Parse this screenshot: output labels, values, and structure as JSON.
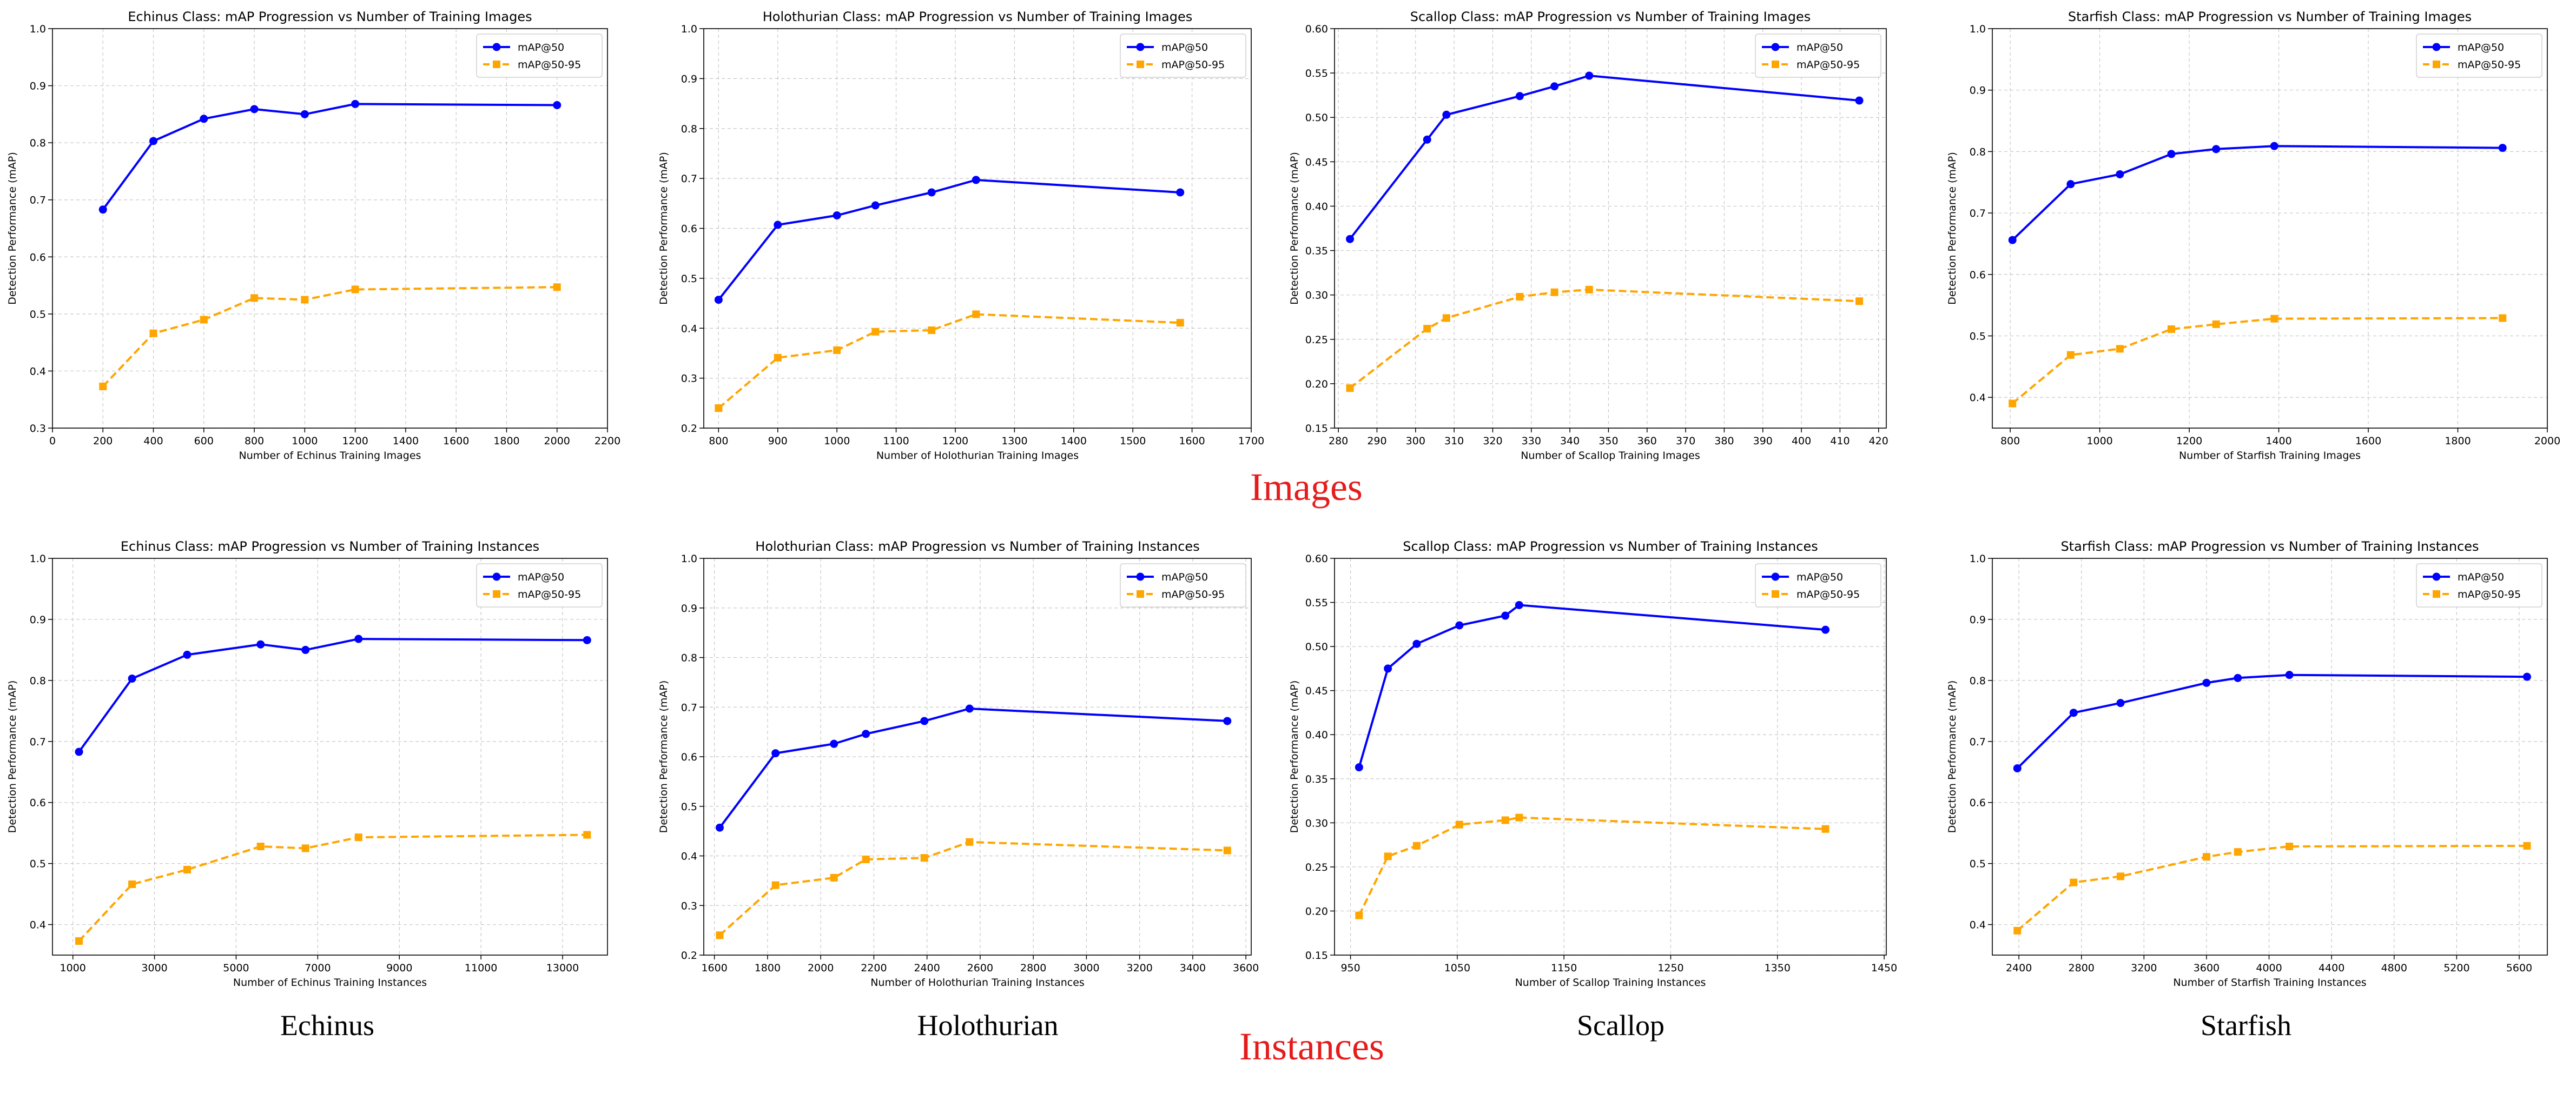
{
  "section_labels": {
    "images": "Images",
    "instances": "Instances"
  },
  "class_labels": [
    "Echinus",
    "Holothurian",
    "Scallop",
    "Starfish"
  ],
  "ylabel": "Detection Performance (mAP)",
  "legend": [
    "mAP@50",
    "mAP@50-95"
  ],
  "colors": {
    "map50": "#0000ff",
    "map5095": "#ffa500",
    "section": "#e51c1c"
  },
  "chart_data": [
    {
      "type": "line",
      "title": "Echinus Class: mAP Progression vs Number of Training Images",
      "xlabel": "Number of Echinus Training Images",
      "ylabel": "Detection Performance (mAP)",
      "xlim": [
        0,
        2200
      ],
      "ylim": [
        0.3,
        1.0
      ],
      "xticks": [
        0,
        200,
        400,
        600,
        800,
        1000,
        1200,
        1400,
        1600,
        1800,
        2000,
        2200
      ],
      "xtick_labels": [
        "0",
        "200",
        "400",
        "600",
        "800",
        "1000",
        "1200",
        "1400",
        "1600",
        "1800",
        "2000",
        "2200"
      ],
      "yticks": [
        0.3,
        0.4,
        0.5,
        0.6,
        0.7,
        0.8,
        0.9,
        1.0
      ],
      "ytick_labels": [
        "0.3",
        "0.4",
        "0.5",
        "0.6",
        "0.7",
        "0.8",
        "0.9",
        "1.0"
      ],
      "x": [
        200,
        400,
        600,
        800,
        1000,
        1200,
        2000
      ],
      "series": [
        {
          "name": "mAP@50",
          "values": [
            0.683,
            0.803,
            0.842,
            0.859,
            0.85,
            0.868,
            0.866
          ]
        },
        {
          "name": "mAP@50-95",
          "values": [
            0.373,
            0.466,
            0.49,
            0.528,
            0.525,
            0.543,
            0.547
          ]
        }
      ]
    },
    {
      "type": "line",
      "title": "Holothurian Class: mAP Progression vs Number of Training Images",
      "xlabel": "Number of Holothurian Training Images",
      "ylabel": "Detection Performance (mAP)",
      "xlim": [
        775,
        1700
      ],
      "ylim": [
        0.2,
        1.0
      ],
      "xticks": [
        800,
        900,
        1000,
        1100,
        1200,
        1300,
        1400,
        1500,
        1600,
        1700
      ],
      "xtick_labels": [
        "800",
        "900",
        "1000",
        "1100",
        "1200",
        "1300",
        "1400",
        "1500",
        "1600",
        "1700"
      ],
      "yticks": [
        0.2,
        0.3,
        0.4,
        0.5,
        0.6,
        0.7,
        0.8,
        0.9,
        1.0
      ],
      "ytick_labels": [
        "0.2",
        "0.3",
        "0.4",
        "0.5",
        "0.6",
        "0.7",
        "0.8",
        "0.9",
        "1.0"
      ],
      "x": [
        800,
        900,
        1000,
        1065,
        1160,
        1235,
        1580
      ],
      "series": [
        {
          "name": "mAP@50",
          "values": [
            0.457,
            0.607,
            0.626,
            0.646,
            0.672,
            0.697,
            0.672
          ]
        },
        {
          "name": "mAP@50-95",
          "values": [
            0.24,
            0.341,
            0.356,
            0.393,
            0.396,
            0.428,
            0.411
          ]
        }
      ]
    },
    {
      "type": "line",
      "title": "Scallop Class: mAP Progression vs Number of Training Images",
      "xlabel": "Number of Scallop Training Images",
      "ylabel": "Detection Performance (mAP)",
      "xlim": [
        279,
        422
      ],
      "ylim": [
        0.15,
        0.6
      ],
      "xticks": [
        280,
        290,
        300,
        310,
        320,
        330,
        340,
        350,
        360,
        370,
        380,
        390,
        400,
        410,
        420
      ],
      "xtick_labels": [
        "280",
        "290",
        "300",
        "310",
        "320",
        "330",
        "340",
        "350",
        "360",
        "370",
        "380",
        "390",
        "400",
        "410",
        "420"
      ],
      "yticks": [
        0.15,
        0.2,
        0.25,
        0.3,
        0.35,
        0.4,
        0.45,
        0.5,
        0.55,
        0.6
      ],
      "ytick_labels": [
        "0.15",
        "0.20",
        "0.25",
        "0.30",
        "0.35",
        "0.40",
        "0.45",
        "0.50",
        "0.55",
        "0.60"
      ],
      "x": [
        283,
        303,
        308,
        327,
        336,
        345,
        415
      ],
      "series": [
        {
          "name": "mAP@50",
          "values": [
            0.363,
            0.475,
            0.503,
            0.524,
            0.535,
            0.547,
            0.519
          ]
        },
        {
          "name": "mAP@50-95",
          "values": [
            0.195,
            0.262,
            0.274,
            0.298,
            0.303,
            0.306,
            0.293
          ]
        }
      ]
    },
    {
      "type": "line",
      "title": "Starfish Class: mAP Progression vs Number of Training Images",
      "xlabel": "Number of Starfish Training Images",
      "ylabel": "Detection Performance (mAP)",
      "xlim": [
        760,
        2000
      ],
      "ylim": [
        0.35,
        1.0
      ],
      "xticks": [
        800,
        1000,
        1200,
        1400,
        1600,
        1800,
        2000
      ],
      "xtick_labels": [
        "800",
        "1000",
        "1200",
        "1400",
        "1600",
        "1800",
        "2000"
      ],
      "yticks": [
        0.4,
        0.5,
        0.6,
        0.7,
        0.8,
        0.9,
        1.0
      ],
      "ytick_labels": [
        "0.4",
        "0.5",
        "0.6",
        "0.7",
        "0.8",
        "0.9",
        "1.0"
      ],
      "x": [
        805,
        935,
        1045,
        1160,
        1260,
        1390,
        1900
      ],
      "series": [
        {
          "name": "mAP@50",
          "values": [
            0.656,
            0.747,
            0.763,
            0.796,
            0.804,
            0.809,
            0.806
          ]
        },
        {
          "name": "mAP@50-95",
          "values": [
            0.39,
            0.469,
            0.479,
            0.511,
            0.519,
            0.528,
            0.529
          ]
        }
      ]
    },
    {
      "type": "line",
      "title": "Echinus Class: mAP Progression vs Number of Training Instances",
      "xlabel": "Number of Echinus Training Instances",
      "ylabel": "Detection Performance (mAP)",
      "xlim": [
        500,
        14100
      ],
      "ylim": [
        0.35,
        1.0
      ],
      "xticks": [
        1000,
        3000,
        5000,
        7000,
        9000,
        11000,
        13000
      ],
      "xtick_labels": [
        "1000",
        "3000",
        "5000",
        "7000",
        "9000",
        "11000",
        "13000"
      ],
      "yticks": [
        0.4,
        0.5,
        0.6,
        0.7,
        0.8,
        0.9,
        1.0
      ],
      "ytick_labels": [
        "0.4",
        "0.5",
        "0.6",
        "0.7",
        "0.8",
        "0.9",
        "1.0"
      ],
      "x": [
        1150,
        2450,
        3800,
        5600,
        6700,
        8000,
        13600
      ],
      "series": [
        {
          "name": "mAP@50",
          "values": [
            0.683,
            0.803,
            0.842,
            0.859,
            0.85,
            0.868,
            0.866
          ]
        },
        {
          "name": "mAP@50-95",
          "values": [
            0.373,
            0.466,
            0.49,
            0.528,
            0.525,
            0.543,
            0.547
          ]
        }
      ]
    },
    {
      "type": "line",
      "title": "Holothurian Class: mAP Progression vs Number of Training Instances",
      "xlabel": "Number of Holothurian Training Instances",
      "ylabel": "Detection Performance (mAP)",
      "xlim": [
        1560,
        3620
      ],
      "ylim": [
        0.2,
        1.0
      ],
      "xticks": [
        1600,
        1800,
        2000,
        2200,
        2400,
        2600,
        2800,
        3000,
        3200,
        3400,
        3600
      ],
      "xtick_labels": [
        "1600",
        "1800",
        "2000",
        "2200",
        "2400",
        "2600",
        "2800",
        "3000",
        "3200",
        "3400",
        "3600"
      ],
      "yticks": [
        0.2,
        0.3,
        0.4,
        0.5,
        0.6,
        0.7,
        0.8,
        0.9,
        1.0
      ],
      "ytick_labels": [
        "0.2",
        "0.3",
        "0.4",
        "0.5",
        "0.6",
        "0.7",
        "0.8",
        "0.9",
        "1.0"
      ],
      "x": [
        1620,
        1830,
        2050,
        2170,
        2390,
        2560,
        3530
      ],
      "series": [
        {
          "name": "mAP@50",
          "values": [
            0.457,
            0.607,
            0.626,
            0.646,
            0.672,
            0.697,
            0.672
          ]
        },
        {
          "name": "mAP@50-95",
          "values": [
            0.24,
            0.341,
            0.356,
            0.393,
            0.396,
            0.428,
            0.411
          ]
        }
      ]
    },
    {
      "type": "line",
      "title": "Scallop Class: mAP Progression vs Number of Training Instances",
      "xlabel": "Number of Scallop Training Instances",
      "ylabel": "Detection Performance (mAP)",
      "xlim": [
        935,
        1452
      ],
      "ylim": [
        0.15,
        0.6
      ],
      "xticks": [
        950,
        1050,
        1150,
        1250,
        1350,
        1450
      ],
      "xtick_labels": [
        "950",
        "1050",
        "1150",
        "1250",
        "1350",
        "1450"
      ],
      "yticks": [
        0.15,
        0.2,
        0.25,
        0.3,
        0.35,
        0.4,
        0.45,
        0.5,
        0.55,
        0.6
      ],
      "ytick_labels": [
        "0.15",
        "0.20",
        "0.25",
        "0.30",
        "0.35",
        "0.40",
        "0.45",
        "0.50",
        "0.55",
        "0.60"
      ],
      "x": [
        958,
        985,
        1012,
        1052,
        1095,
        1108,
        1395
      ],
      "series": [
        {
          "name": "mAP@50",
          "values": [
            0.363,
            0.475,
            0.503,
            0.524,
            0.535,
            0.547,
            0.519
          ]
        },
        {
          "name": "mAP@50-95",
          "values": [
            0.195,
            0.262,
            0.274,
            0.298,
            0.303,
            0.306,
            0.293
          ]
        }
      ]
    },
    {
      "type": "line",
      "title": "Starfish Class: mAP Progression vs Number of Training Instances",
      "xlabel": "Number of Starfish Training Instances",
      "ylabel": "Detection Performance (mAP)",
      "xlim": [
        2230,
        5780
      ],
      "ylim": [
        0.35,
        1.0
      ],
      "xticks": [
        2400,
        2800,
        3200,
        3600,
        4000,
        4400,
        4800,
        5200,
        5600
      ],
      "xtick_labels": [
        "2400",
        "2800",
        "3200",
        "3600",
        "4000",
        "4400",
        "4800",
        "5200",
        "5600"
      ],
      "yticks": [
        0.4,
        0.5,
        0.6,
        0.7,
        0.8,
        0.9,
        1.0
      ],
      "ytick_labels": [
        "0.4",
        "0.5",
        "0.6",
        "0.7",
        "0.8",
        "0.9",
        "1.0"
      ],
      "x": [
        2390,
        2750,
        3050,
        3600,
        3800,
        4130,
        5650
      ],
      "series": [
        {
          "name": "mAP@50",
          "values": [
            0.656,
            0.747,
            0.763,
            0.796,
            0.804,
            0.809,
            0.806
          ]
        },
        {
          "name": "mAP@50-95",
          "values": [
            0.39,
            0.469,
            0.479,
            0.511,
            0.519,
            0.528,
            0.529
          ]
        }
      ]
    }
  ]
}
